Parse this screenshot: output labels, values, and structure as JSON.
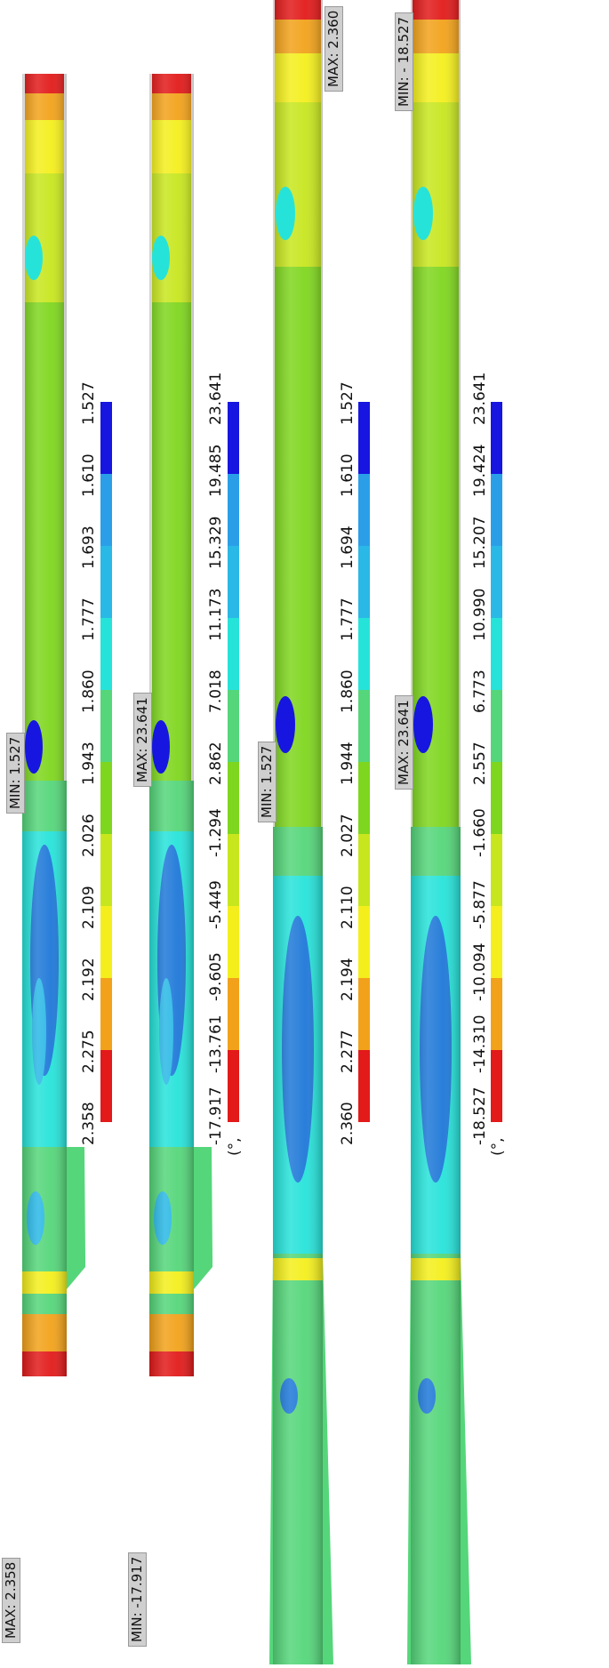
{
  "colors": {
    "red": "#e21a1a",
    "orange": "#f2a21a",
    "yellow": "#f4ef1c",
    "yellow_green": "#c8e61e",
    "green": "#7fd61e",
    "green_mid": "#55d67a",
    "cyan": "#26e3da",
    "light_blue": "#2ab8e6",
    "blue": "#1e78d8",
    "dark_blue": "#1616e0"
  },
  "panels": [
    {
      "legend_ticks": [
        "2.358",
        "2.275",
        "2.192",
        "2.109",
        "2.026",
        "1.943",
        "1.860",
        "1.777",
        "1.693",
        "1.610",
        "1.527"
      ],
      "unit": "",
      "min_tag": "MIN: 1.527",
      "max_tag": "MAX: 2.358"
    },
    {
      "legend_ticks": [
        "-17.917",
        "-13.761",
        "-9.605",
        "-5.449",
        "-1.294",
        "2.862",
        "7.018",
        "11.173",
        "15.329",
        "19.485",
        "23.641"
      ],
      "unit": "(°,",
      "min_tag": "MIN: -17.917",
      "max_tag": "MAX: 23.641"
    },
    {
      "legend_ticks": [
        "2.360",
        "2.277",
        "2.194",
        "2.110",
        "2.027",
        "1.944",
        "1.860",
        "1.777",
        "1.694",
        "1.610",
        "1.527"
      ],
      "unit": "",
      "min_tag": "MIN: 1.527",
      "max_tag": "MAX: 2.360"
    },
    {
      "legend_ticks": [
        "-18.527",
        "-14.310",
        "-10.094",
        "-5.877",
        "-1.660",
        "2.557",
        "6.773",
        "10.990",
        "15.207",
        "19.424",
        "23.641"
      ],
      "unit": "(°,",
      "min_tag": "MIN: - 18.527",
      "max_tag": "MAX: 23.641"
    }
  ]
}
